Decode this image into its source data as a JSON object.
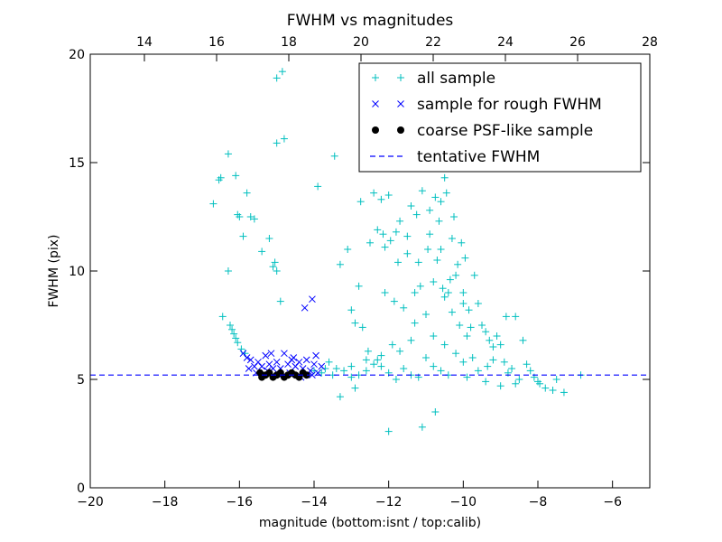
{
  "chart_data": {
    "type": "scatter",
    "title": "FWHM vs magnitudes",
    "xlabel": "magnitude (bottom:isnt / top:calib)",
    "ylabel": "FWHM (pix)",
    "xlim": [
      -20,
      -5
    ],
    "ylim": [
      0,
      20
    ],
    "x_ticks": [
      -20,
      -18,
      -16,
      -14,
      -12,
      -10,
      -8,
      -6
    ],
    "x_tick_labels": [
      "−20",
      "−18",
      "−16",
      "−14",
      "−12",
      "−10",
      "−8",
      "−6"
    ],
    "top_x_lim": [
      12.5,
      28
    ],
    "top_x_ticks": [
      14,
      16,
      18,
      20,
      22,
      24,
      26,
      28
    ],
    "top_x_tick_labels": [
      "14",
      "16",
      "18",
      "20",
      "22",
      "24",
      "26",
      "28"
    ],
    "y_ticks": [
      0,
      5,
      10,
      15,
      20
    ],
    "y_tick_labels": [
      "0",
      "5",
      "10",
      "15",
      "20"
    ],
    "legend_position": "top-right",
    "tentative_fwhm": 5.2,
    "series": [
      {
        "name": "all sample",
        "marker": "plus",
        "color": "#00bfbf",
        "points": [
          [
            -16.7,
            13.1
          ],
          [
            -16.55,
            14.2
          ],
          [
            -16.5,
            14.3
          ],
          [
            -16.3,
            15.4
          ],
          [
            -16.1,
            14.4
          ],
          [
            -16.05,
            12.6
          ],
          [
            -16.0,
            12.5
          ],
          [
            -15.9,
            11.6
          ],
          [
            -15.8,
            13.6
          ],
          [
            -15.7,
            12.5
          ],
          [
            -15.6,
            12.4
          ],
          [
            -15.4,
            10.9
          ],
          [
            -15.2,
            11.5
          ],
          [
            -15.1,
            10.2
          ],
          [
            -15.05,
            10.4
          ],
          [
            -15.0,
            10.0
          ],
          [
            -14.9,
            8.6
          ],
          [
            -15.0,
            15.9
          ],
          [
            -14.8,
            16.1
          ],
          [
            -15.0,
            18.9
          ],
          [
            -14.85,
            19.2
          ],
          [
            -16.3,
            10.0
          ],
          [
            -16.45,
            7.9
          ],
          [
            -16.25,
            7.5
          ],
          [
            -16.2,
            7.3
          ],
          [
            -16.1,
            6.9
          ],
          [
            -16.05,
            6.7
          ],
          [
            -15.95,
            6.4
          ],
          [
            -15.85,
            6.2
          ],
          [
            -16.15,
            7.1
          ],
          [
            -13.9,
            13.9
          ],
          [
            -13.45,
            15.3
          ],
          [
            -13.3,
            10.3
          ],
          [
            -13.1,
            11.0
          ],
          [
            -13.0,
            8.2
          ],
          [
            -12.9,
            7.6
          ],
          [
            -12.8,
            9.3
          ],
          [
            -12.75,
            13.2
          ],
          [
            -12.5,
            11.3
          ],
          [
            -12.3,
            11.9
          ],
          [
            -12.1,
            11.1
          ],
          [
            -11.95,
            11.4
          ],
          [
            -11.8,
            11.8
          ],
          [
            -12.4,
            13.6
          ],
          [
            -12.2,
            13.3
          ],
          [
            -12.0,
            13.5
          ],
          [
            -11.7,
            12.3
          ],
          [
            -11.5,
            11.6
          ],
          [
            -11.4,
            13.0
          ],
          [
            -11.2,
            10.4
          ],
          [
            -11.1,
            13.7
          ],
          [
            -10.9,
            12.8
          ],
          [
            -10.75,
            13.4
          ],
          [
            -10.6,
            13.2
          ],
          [
            -10.5,
            14.3
          ],
          [
            -10.45,
            13.6
          ],
          [
            -10.65,
            12.3
          ],
          [
            -10.95,
            11.0
          ],
          [
            -11.3,
            9.0
          ],
          [
            -11.6,
            8.3
          ],
          [
            -11.85,
            8.6
          ],
          [
            -12.1,
            9.0
          ],
          [
            -12.55,
            6.3
          ],
          [
            -12.7,
            7.4
          ],
          [
            -11.9,
            6.6
          ],
          [
            -11.3,
            7.6
          ],
          [
            -10.8,
            7.0
          ],
          [
            -10.5,
            8.8
          ],
          [
            -10.3,
            8.1
          ],
          [
            -10.2,
            9.8
          ],
          [
            -10.1,
            7.5
          ],
          [
            -10.0,
            8.5
          ],
          [
            -9.9,
            7.0
          ],
          [
            -9.8,
            7.4
          ],
          [
            -9.7,
            9.8
          ],
          [
            -9.6,
            8.5
          ],
          [
            -9.5,
            7.5
          ],
          [
            -9.4,
            7.2
          ],
          [
            -9.3,
            6.8
          ],
          [
            -9.2,
            6.5
          ],
          [
            -9.1,
            7.0
          ],
          [
            -9.0,
            6.6
          ],
          [
            -8.85,
            7.9
          ],
          [
            -8.6,
            7.9
          ],
          [
            -8.4,
            6.8
          ],
          [
            -8.3,
            5.7
          ],
          [
            -8.2,
            5.4
          ],
          [
            -8.1,
            5.1
          ],
          [
            -8.0,
            4.9
          ],
          [
            -7.8,
            4.6
          ],
          [
            -7.6,
            4.5
          ],
          [
            -7.3,
            4.4
          ],
          [
            -6.85,
            5.2
          ],
          [
            -11.1,
            2.8
          ],
          [
            -12.0,
            2.6
          ],
          [
            -10.75,
            3.5
          ],
          [
            -13.3,
            4.2
          ],
          [
            -12.9,
            4.6
          ],
          [
            -10.4,
            9.0
          ],
          [
            -10.7,
            10.5
          ],
          [
            -10.9,
            11.7
          ],
          [
            -10.3,
            11.5
          ],
          [
            -10.25,
            12.5
          ],
          [
            -10.6,
            11.0
          ],
          [
            -10.8,
            9.5
          ],
          [
            -11.0,
            8.0
          ],
          [
            -11.4,
            6.8
          ],
          [
            -12.2,
            6.1
          ],
          [
            -12.6,
            5.9
          ],
          [
            -13.0,
            5.6
          ],
          [
            -13.4,
            5.5
          ],
          [
            -13.8,
            5.3
          ],
          [
            -13.6,
            5.8
          ],
          [
            -13.2,
            5.4
          ],
          [
            -12.8,
            5.2
          ],
          [
            -12.4,
            5.7
          ],
          [
            -12.0,
            5.3
          ],
          [
            -11.6,
            5.5
          ],
          [
            -11.2,
            5.1
          ],
          [
            -10.8,
            5.6
          ],
          [
            -10.4,
            5.2
          ],
          [
            -10.0,
            5.8
          ],
          [
            -9.6,
            5.4
          ],
          [
            -9.2,
            5.9
          ],
          [
            -8.8,
            5.3
          ],
          [
            -8.5,
            5.0
          ],
          [
            -9.4,
            4.9
          ],
          [
            -9.9,
            5.1
          ],
          [
            -10.6,
            5.4
          ],
          [
            -11.4,
            5.2
          ],
          [
            -12.2,
            5.6
          ],
          [
            -13.0,
            5.1
          ],
          [
            -13.7,
            5.5
          ],
          [
            -14.0,
            5.4
          ],
          [
            -13.5,
            5.2
          ],
          [
            -12.6,
            5.4
          ],
          [
            -11.8,
            5.0
          ],
          [
            -10.2,
            6.2
          ],
          [
            -9.75,
            6.0
          ],
          [
            -9.35,
            5.6
          ],
          [
            -8.9,
            5.8
          ],
          [
            -8.7,
            5.5
          ],
          [
            -10.5,
            6.6
          ],
          [
            -11.0,
            6.0
          ],
          [
            -11.7,
            6.3
          ],
          [
            -12.3,
            5.9
          ],
          [
            -9.0,
            4.7
          ],
          [
            -8.6,
            4.8
          ],
          [
            -7.95,
            4.8
          ],
          [
            -7.5,
            5.0
          ],
          [
            -10.05,
            11.3
          ],
          [
            -9.95,
            10.6
          ],
          [
            -10.15,
            10.3
          ],
          [
            -10.35,
            9.6
          ],
          [
            -10.55,
            9.2
          ],
          [
            -11.15,
            9.3
          ],
          [
            -11.5,
            10.8
          ],
          [
            -11.75,
            10.4
          ],
          [
            -12.15,
            11.7
          ],
          [
            -11.25,
            12.6
          ],
          [
            -10.0,
            9.0
          ],
          [
            -9.85,
            8.2
          ]
        ]
      },
      {
        "name": "sample for rough FWHM",
        "marker": "x",
        "color": "#0000ff",
        "points": [
          [
            -15.9,
            6.2
          ],
          [
            -15.8,
            6.0
          ],
          [
            -15.7,
            5.9
          ],
          [
            -15.6,
            5.6
          ],
          [
            -15.5,
            5.8
          ],
          [
            -15.4,
            5.6
          ],
          [
            -15.3,
            6.1
          ],
          [
            -15.2,
            5.7
          ],
          [
            -15.1,
            5.5
          ],
          [
            -15.0,
            5.8
          ],
          [
            -14.9,
            5.5
          ],
          [
            -14.8,
            6.2
          ],
          [
            -14.7,
            5.7
          ],
          [
            -14.6,
            5.9
          ],
          [
            -14.5,
            5.6
          ],
          [
            -14.4,
            5.8
          ],
          [
            -14.3,
            5.5
          ],
          [
            -14.2,
            5.9
          ],
          [
            -14.1,
            5.4
          ],
          [
            -14.0,
            5.7
          ],
          [
            -13.9,
            5.3
          ],
          [
            -13.8,
            5.6
          ],
          [
            -15.55,
            5.3
          ],
          [
            -15.25,
            5.4
          ],
          [
            -14.95,
            5.2
          ],
          [
            -14.65,
            5.3
          ],
          [
            -14.35,
            5.1
          ],
          [
            -14.05,
            5.2
          ],
          [
            -15.75,
            5.5
          ],
          [
            -15.15,
            6.2
          ],
          [
            -14.55,
            6.0
          ],
          [
            -13.95,
            6.1
          ],
          [
            -14.25,
            8.3
          ],
          [
            -14.05,
            8.7
          ]
        ]
      },
      {
        "name": "coarse PSF-like sample",
        "marker": "dot",
        "color": "#000000",
        "points": [
          [
            -15.45,
            5.3
          ],
          [
            -15.4,
            5.1
          ],
          [
            -15.3,
            5.2
          ],
          [
            -15.2,
            5.3
          ],
          [
            -15.1,
            5.1
          ],
          [
            -15.0,
            5.2
          ],
          [
            -14.9,
            5.3
          ],
          [
            -14.8,
            5.1
          ],
          [
            -14.7,
            5.2
          ],
          [
            -14.6,
            5.3
          ],
          [
            -14.5,
            5.2
          ],
          [
            -14.4,
            5.1
          ],
          [
            -14.3,
            5.3
          ],
          [
            -14.2,
            5.2
          ]
        ]
      }
    ],
    "legend": [
      {
        "label": "all sample",
        "marker": "plus",
        "color": "#00bfbf"
      },
      {
        "label": "sample for rough FWHM",
        "marker": "x",
        "color": "#0000ff"
      },
      {
        "label": "coarse PSF-like sample",
        "marker": "dot",
        "color": "#000000"
      },
      {
        "label": "tentative FWHM",
        "marker": "dashed-line",
        "color": "#0000ff"
      }
    ]
  }
}
